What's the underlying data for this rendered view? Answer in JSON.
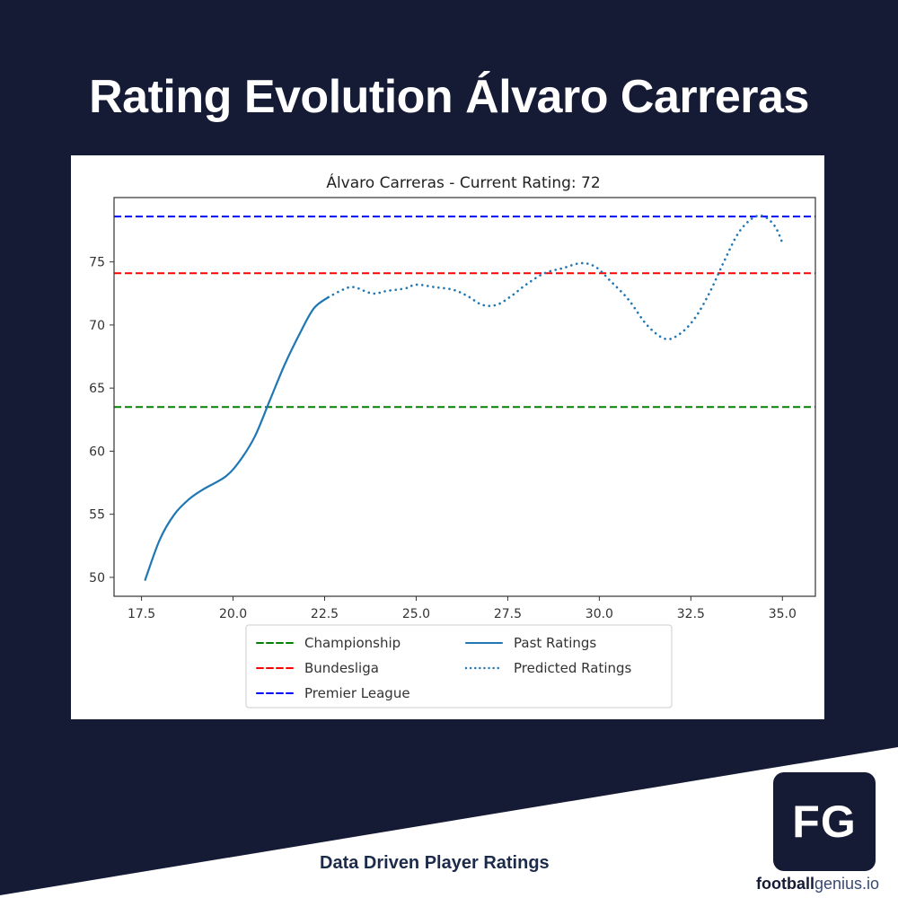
{
  "header": {
    "title": "Rating Evolution Álvaro Carreras"
  },
  "footer": {
    "tagline": "Data Driven Player Ratings",
    "logo_text": "FG",
    "brand_bold": "football",
    "brand_light": "genius.io"
  },
  "colors": {
    "background": "#161b35",
    "championship": "#008000",
    "bundesliga": "#ff0000",
    "premier_league": "#0000ff",
    "ratings": "#1f77b4"
  },
  "chart_data": {
    "type": "line",
    "title": "Álvaro Carreras - Current Rating: 72",
    "xlabel": "",
    "ylabel": "",
    "xlim": [
      16.75,
      35.9
    ],
    "ylim": [
      48.5,
      80.1
    ],
    "xticks": [
      "17.5",
      "20.0",
      "22.5",
      "25.0",
      "27.5",
      "30.0",
      "32.5",
      "35.0"
    ],
    "yticks": [
      "50",
      "55",
      "60",
      "65",
      "70",
      "75"
    ],
    "grid": false,
    "legend_position": "below plot, 2 columns",
    "reference_lines": [
      {
        "name": "Championship",
        "y": 63.5,
        "style": "dashed",
        "color": "#008000"
      },
      {
        "name": "Bundesliga",
        "y": 74.1,
        "style": "dashed",
        "color": "#ff0000"
      },
      {
        "name": "Premier League",
        "y": 78.6,
        "style": "dashed",
        "color": "#0000ff"
      }
    ],
    "series": [
      {
        "name": "Past Ratings",
        "style": "solid",
        "color": "#1f77b4",
        "x": [
          17.6,
          18.0,
          18.4,
          18.8,
          19.2,
          19.8,
          20.2,
          20.6,
          21.0,
          21.4,
          21.8,
          22.2,
          22.6
        ],
        "y": [
          49.8,
          53.0,
          55.0,
          56.2,
          57.0,
          58.0,
          59.3,
          61.2,
          64.0,
          66.8,
          69.2,
          71.3,
          72.2
        ]
      },
      {
        "name": "Predicted Ratings",
        "style": "dotted",
        "color": "#1f77b4",
        "x": [
          22.6,
          23.0,
          23.3,
          23.8,
          24.2,
          24.7,
          25.0,
          25.5,
          26.0,
          26.4,
          26.8,
          27.2,
          27.6,
          28.0,
          28.5,
          29.0,
          29.5,
          29.9,
          30.3,
          30.8,
          31.3,
          31.8,
          32.2,
          32.6,
          33.0,
          33.4,
          33.8,
          34.2,
          34.5,
          34.8,
          35.0
        ],
        "y": [
          72.2,
          72.8,
          73.0,
          72.5,
          72.7,
          72.9,
          73.2,
          73.0,
          72.8,
          72.3,
          71.6,
          71.6,
          72.3,
          73.2,
          74.1,
          74.5,
          74.9,
          74.6,
          73.5,
          72.0,
          70.0,
          68.9,
          69.3,
          70.5,
          72.5,
          75.0,
          77.3,
          78.5,
          78.6,
          77.8,
          76.5
        ]
      }
    ]
  }
}
